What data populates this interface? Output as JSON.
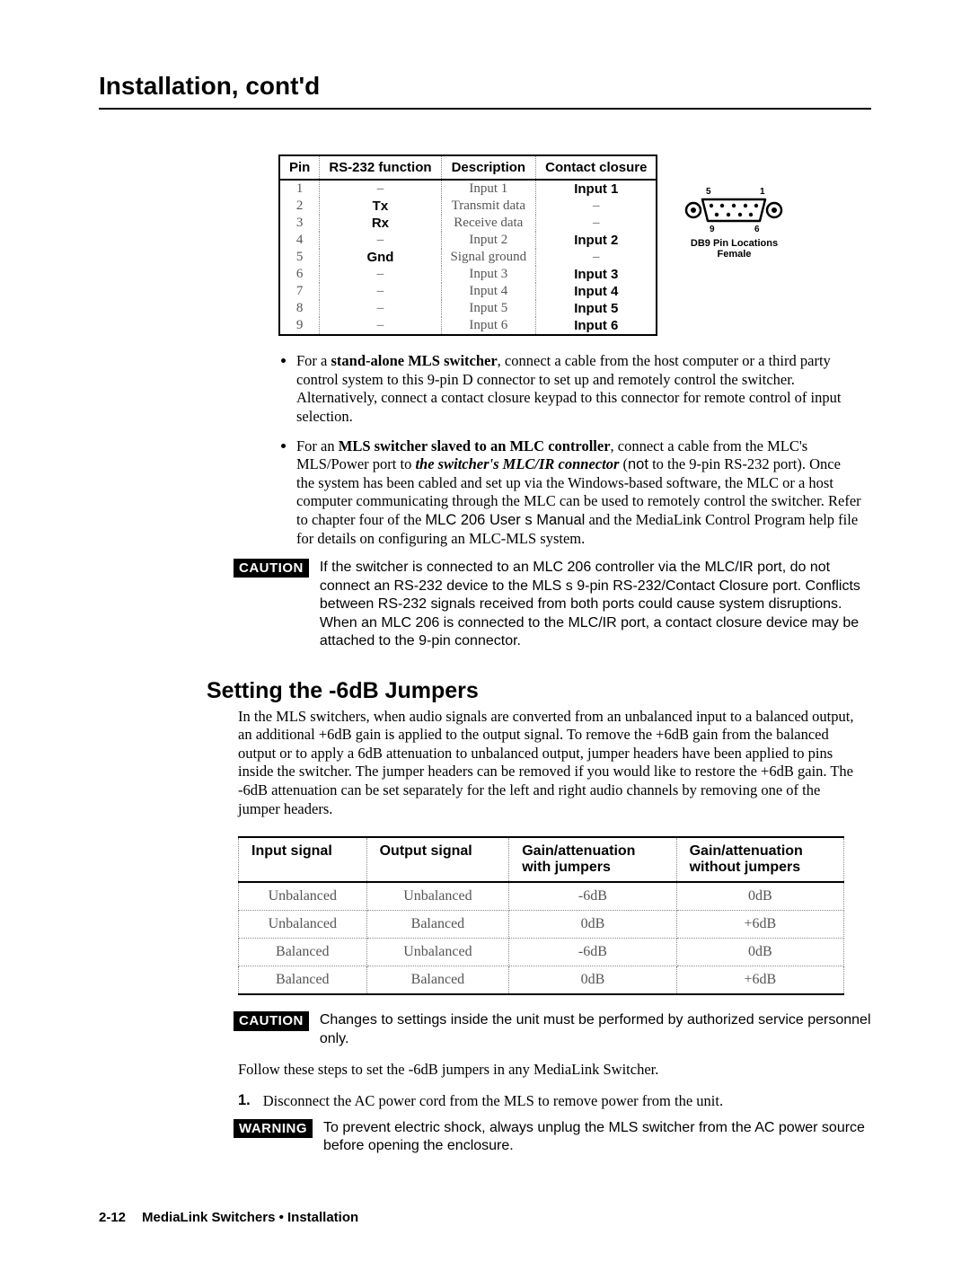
{
  "page_title": "Installation, cont'd",
  "pin_table": {
    "headers": [
      "Pin",
      "RS-232 function",
      "Description",
      "Contact closure"
    ],
    "rows": [
      {
        "pin": "1",
        "rs": "–",
        "desc": "Input 1",
        "cc": "Input 1",
        "rs_bold": false,
        "cc_bold": true
      },
      {
        "pin": "2",
        "rs": "Tx",
        "desc": "Transmit data",
        "cc": "–",
        "rs_bold": true,
        "cc_bold": false
      },
      {
        "pin": "3",
        "rs": "Rx",
        "desc": "Receive data",
        "cc": "–",
        "rs_bold": true,
        "cc_bold": false
      },
      {
        "pin": "4",
        "rs": "–",
        "desc": "Input 2",
        "cc": "Input 2",
        "rs_bold": false,
        "cc_bold": true
      },
      {
        "pin": "5",
        "rs": "Gnd",
        "desc": "Signal ground",
        "cc": "–",
        "rs_bold": true,
        "cc_bold": false
      },
      {
        "pin": "6",
        "rs": "–",
        "desc": "Input 3",
        "cc": "Input 3",
        "rs_bold": false,
        "cc_bold": true
      },
      {
        "pin": "7",
        "rs": "–",
        "desc": "Input 4",
        "cc": "Input 4",
        "rs_bold": false,
        "cc_bold": true
      },
      {
        "pin": "8",
        "rs": "–",
        "desc": "Input 5",
        "cc": "Input 5",
        "rs_bold": false,
        "cc_bold": true
      },
      {
        "pin": "9",
        "rs": "–",
        "desc": "Input 6",
        "cc": "Input 6",
        "rs_bold": false,
        "cc_bold": true
      }
    ]
  },
  "db9": {
    "top_left": "5",
    "top_right": "1",
    "bot_left": "9",
    "bot_right": "6",
    "line1": "DB9 Pin Locations",
    "line2": "Female"
  },
  "bullets": {
    "b1_pre": "For a ",
    "b1_bold": "stand-alone MLS switcher",
    "b1_post": ", connect a cable from the host computer or a third party control system to this 9-pin D connector to set up and remotely control the switcher.  Alternatively, connect a contact closure keypad to this connector for remote control of input selection.",
    "b2_pre": "For an ",
    "b2_bold": "MLS switcher slaved to an MLC controller",
    "b2_a": ", connect a cable from the MLC's MLS/Power port to ",
    "b2_bi": "the switcher's MLC/IR connector",
    "b2_paren_open": " (",
    "b2_not": "not",
    "b2_b": " to the 9-pin RS-232 port).  Once the system has been cabled and set up via the Windows-based software, the MLC or a host computer communicating through the MLC can be used to remotely control the switcher.  Refer to chapter four of the ",
    "b2_manual": "MLC 206 User s Manual",
    "b2_c": " and the MediaLink Control Program help file for details on configuring an MLC-MLS system."
  },
  "caution1": {
    "tag": "CAUTION",
    "p1": "If the switcher is connected to an MLC 206 controller via the MLC/IR port, do not connect an RS-232 device to the MLS s 9-pin RS-232/Contact Closure port.  Conflicts between RS-232 signals received from both ports could cause system disruptions.",
    "p2": "When an MLC 206 is connected to the MLC/IR port, a contact closure device may be attached to the 9-pin connector."
  },
  "section2_title": "Setting the -6dB Jumpers",
  "section2_para": "In the MLS switchers, when audio signals are converted from an unbalanced input to a balanced output, an additional +6dB gain is applied to the output signal.  To remove the +6dB gain from the balanced output or to apply a 6dB attenuation to unbalanced output, jumper headers have been applied to pins inside the switcher.  The jumper headers can be removed if you would like to restore the +6dB gain.  The -6dB attenuation can be set separately for the left and right audio channels by removing one of the jumper headers.",
  "gain_table": {
    "headers": [
      "Input signal",
      "Output signal",
      "Gain/attenuation with jumpers",
      "Gain/attenuation without jumpers"
    ],
    "rows": [
      [
        "Unbalanced",
        "Unbalanced",
        "-6dB",
        "0dB"
      ],
      [
        "Unbalanced",
        "Balanced",
        "0dB",
        "+6dB"
      ],
      [
        "Balanced",
        "Unbalanced",
        "-6dB",
        "0dB"
      ],
      [
        "Balanced",
        "Balanced",
        "0dB",
        "+6dB"
      ]
    ]
  },
  "caution2": {
    "tag": "CAUTION",
    "text": "Changes to settings inside the unit must be performed by authorized service personnel only."
  },
  "follow": "Follow these steps to set the -6dB jumpers in any MediaLink Switcher.",
  "step1_num": "1.",
  "step1_text": "Disconnect the AC power cord from the MLS to remove power from the unit.",
  "warning": {
    "tag": "WARNING",
    "text": "To prevent electric shock, always unplug the MLS switcher from the AC power source before opening the enclosure."
  },
  "footer": {
    "page": "2-12",
    "text": "MediaLink Switchers • Installation"
  }
}
